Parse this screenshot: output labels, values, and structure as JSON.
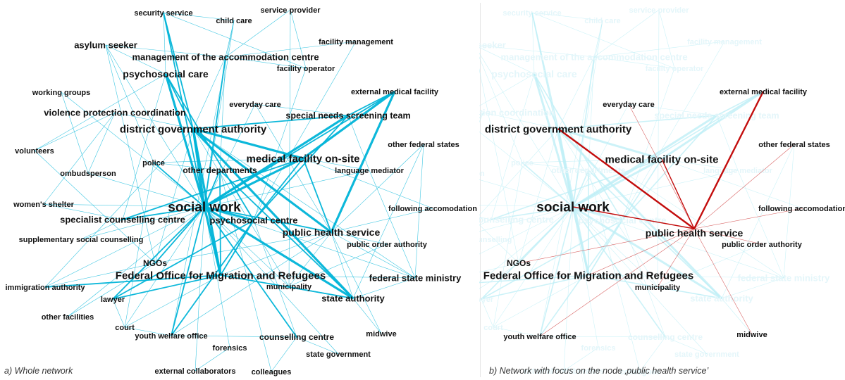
{
  "colors": {
    "edge": "#00b4d8",
    "edge_faded": "#bfeff6",
    "label": "#111111",
    "label_faded": "#e4f6fa",
    "focus_edge": "#c00000"
  },
  "panel_a": {
    "caption": "a) Whole network"
  },
  "panel_b": {
    "caption": "b) Network with focus on the node ‚public health service’",
    "focus_node": "public health service"
  },
  "nodes": [
    {
      "id": "security_service",
      "label": "security service"
    },
    {
      "id": "service_provider",
      "label": "service provider"
    },
    {
      "id": "child_care",
      "label": "child care"
    },
    {
      "id": "asylum_seeker",
      "label": "asylum seeker"
    },
    {
      "id": "facility_management",
      "label": "facility management"
    },
    {
      "id": "management_accommodation",
      "label": "management of the accommodation centre"
    },
    {
      "id": "facility_operator",
      "label": "facility operator"
    },
    {
      "id": "psychosocial_care",
      "label": "psychosocial care"
    },
    {
      "id": "working_groups",
      "label": "working groups"
    },
    {
      "id": "external_medical_facility",
      "label": "external medical facility"
    },
    {
      "id": "everyday_care",
      "label": "everyday care"
    },
    {
      "id": "violence_protection",
      "label": "violence protection coordination"
    },
    {
      "id": "special_needs",
      "label": "special needs screening team"
    },
    {
      "id": "district_government",
      "label": "district government authority"
    },
    {
      "id": "volunteers",
      "label": "volunteers"
    },
    {
      "id": "other_federal_states",
      "label": "other federal states"
    },
    {
      "id": "medical_facility_onsite",
      "label": "medical facility on-site"
    },
    {
      "id": "police",
      "label": "police"
    },
    {
      "id": "ombudsperson",
      "label": "ombudsperson"
    },
    {
      "id": "other_departments",
      "label": "other departments"
    },
    {
      "id": "language_mediator",
      "label": "language mediator"
    },
    {
      "id": "womens_shelter",
      "label": "women's shelter"
    },
    {
      "id": "social_work",
      "label": "social work"
    },
    {
      "id": "following_accommodation",
      "label": "following accomodation"
    },
    {
      "id": "specialist_counselling",
      "label": "specialist counselling centre"
    },
    {
      "id": "psychosocial_centre",
      "label": "psychosocial centre"
    },
    {
      "id": "public_health_service",
      "label": "public health service"
    },
    {
      "id": "supplementary_counselling",
      "label": "supplementary social counselling"
    },
    {
      "id": "public_order_authority",
      "label": "public order authority"
    },
    {
      "id": "ngos",
      "label": "NGOs"
    },
    {
      "id": "bamf",
      "label": "Federal Office for Migration and Refugees"
    },
    {
      "id": "federal_state_ministry",
      "label": "federal state ministry"
    },
    {
      "id": "immigration_authority",
      "label": "immigration authority"
    },
    {
      "id": "municipality",
      "label": "municipality"
    },
    {
      "id": "lawyer",
      "label": "lawyer"
    },
    {
      "id": "state_authority",
      "label": "state authority"
    },
    {
      "id": "other_facilities",
      "label": "other facilities"
    },
    {
      "id": "court",
      "label": "court"
    },
    {
      "id": "youth_welfare_office",
      "label": "youth welfare office"
    },
    {
      "id": "midwive",
      "label": "midwive"
    },
    {
      "id": "counselling_centre",
      "label": "counselling centre"
    },
    {
      "id": "forensics",
      "label": "forensics"
    },
    {
      "id": "state_government",
      "label": "state government"
    },
    {
      "id": "external_collaborators",
      "label": "external collaborators"
    },
    {
      "id": "colleagues",
      "label": "colleagues"
    }
  ],
  "edges": [
    [
      "social_work",
      "district_government",
      3
    ],
    [
      "social_work",
      "psychosocial_care",
      3
    ],
    [
      "social_work",
      "medical_facility_onsite",
      3
    ],
    [
      "social_work",
      "psychosocial_centre",
      3
    ],
    [
      "social_work",
      "bamf",
      3
    ],
    [
      "social_work",
      "special_needs",
      3
    ],
    [
      "social_work",
      "external_medical_facility",
      2
    ],
    [
      "social_work",
      "public_health_service",
      2
    ],
    [
      "social_work",
      "specialist_counselling",
      2
    ],
    [
      "social_work",
      "state_authority",
      3
    ],
    [
      "social_work",
      "youth_welfare_office",
      2
    ],
    [
      "social_work",
      "counselling_centre",
      2
    ],
    [
      "social_work",
      "other_departments",
      2
    ],
    [
      "social_work",
      "police",
      2
    ],
    [
      "social_work",
      "management_accommodation",
      2
    ],
    [
      "social_work",
      "security_service",
      2
    ],
    [
      "social_work",
      "lawyer",
      2
    ],
    [
      "social_work",
      "immigration_authority",
      1
    ],
    [
      "social_work",
      "ngos",
      2
    ],
    [
      "social_work",
      "municipality",
      1
    ],
    [
      "social_work",
      "court",
      1
    ],
    [
      "social_work",
      "asylum_seeker",
      1
    ],
    [
      "social_work",
      "everyday_care",
      1
    ],
    [
      "social_work",
      "language_mediator",
      1
    ],
    [
      "social_work",
      "federal_state_ministry",
      1
    ],
    [
      "social_work",
      "forensics",
      1
    ],
    [
      "social_work",
      "child_care",
      1
    ],
    [
      "social_work",
      "working_groups",
      1
    ],
    [
      "social_work",
      "womens_shelter",
      1
    ],
    [
      "social_work",
      "supplementary_counselling",
      1
    ],
    [
      "district_government",
      "medical_facility_onsite",
      3
    ],
    [
      "district_government",
      "public_health_service",
      3
    ],
    [
      "district_government",
      "bamf",
      3
    ],
    [
      "district_government",
      "state_authority",
      3
    ],
    [
      "district_government",
      "psychosocial_care",
      2
    ],
    [
      "district_government",
      "security_service",
      2
    ],
    [
      "district_government",
      "violence_protection",
      1
    ],
    [
      "district_government",
      "management_accommodation",
      1
    ],
    [
      "district_government",
      "ngos",
      1
    ],
    [
      "district_government",
      "federal_state_ministry",
      1
    ],
    [
      "medical_facility_onsite",
      "external_medical_facility",
      3
    ],
    [
      "medical_facility_onsite",
      "psychosocial_centre",
      2
    ],
    [
      "medical_facility_onsite",
      "specialist_counselling",
      2
    ],
    [
      "medical_facility_onsite",
      "police",
      1
    ],
    [
      "medical_facility_onsite",
      "language_mediator",
      1
    ],
    [
      "medical_facility_onsite",
      "public_health_service",
      2
    ],
    [
      "public_health_service",
      "external_medical_facility",
      3
    ],
    [
      "public_health_service",
      "everyday_care",
      1
    ],
    [
      "public_health_service",
      "other_federal_states",
      1
    ],
    [
      "public_health_service",
      "following_accommodation",
      1
    ],
    [
      "public_health_service",
      "public_order_authority",
      1
    ],
    [
      "public_health_service",
      "midwive",
      1
    ],
    [
      "public_health_service",
      "municipality",
      1
    ],
    [
      "public_health_service",
      "bamf",
      1
    ],
    [
      "public_health_service",
      "ngos",
      1
    ],
    [
      "public_health_service",
      "youth_welfare_office",
      1
    ],
    [
      "public_health_service",
      "state_authority",
      1
    ],
    [
      "public_health_service",
      "federal_state_ministry",
      1
    ],
    [
      "psychosocial_centre",
      "special_needs",
      2
    ],
    [
      "psychosocial_centre",
      "youth_welfare_office",
      2
    ],
    [
      "psychosocial_centre",
      "lawyer",
      2
    ],
    [
      "psychosocial_centre",
      "bamf",
      2
    ],
    [
      "psychosocial_centre",
      "psychosocial_care",
      2
    ],
    [
      "psychosocial_centre",
      "counselling_centre",
      1
    ],
    [
      "bamf",
      "immigration_authority",
      2
    ],
    [
      "bamf",
      "lawyer",
      2
    ],
    [
      "bamf",
      "state_authority",
      2
    ],
    [
      "bamf",
      "federal_state_ministry",
      1
    ],
    [
      "bamf",
      "other_departments",
      2
    ],
    [
      "bamf",
      "court",
      1
    ],
    [
      "special_needs",
      "external_medical_facility",
      2
    ],
    [
      "special_needs",
      "district_government",
      2
    ],
    [
      "specialist_counselling",
      "womens_shelter",
      1
    ],
    [
      "specialist_counselling",
      "psychosocial_care",
      1
    ],
    [
      "specialist_counselling",
      "supplementary_counselling",
      1
    ],
    [
      "state_authority",
      "federal_state_ministry",
      1
    ],
    [
      "state_authority",
      "other_departments",
      2
    ],
    [
      "state_authority",
      "municipality",
      1
    ],
    [
      "federal_state_ministry",
      "other_federal_states",
      1
    ],
    [
      "federal_state_ministry",
      "language_mediator",
      1
    ],
    [
      "asylum_seeker",
      "management_accommodation",
      1
    ],
    [
      "asylum_seeker",
      "psychosocial_care",
      1
    ],
    [
      "asylum_seeker",
      "police",
      1
    ],
    [
      "asylum_seeker",
      "ngos",
      1
    ],
    [
      "management_accommodation",
      "facility_operator",
      1
    ],
    [
      "management_accommodation",
      "facility_management",
      1
    ],
    [
      "management_accommodation",
      "other_departments",
      1
    ],
    [
      "management_accommodation",
      "child_care",
      1
    ],
    [
      "management_accommodation",
      "service_provider",
      1
    ],
    [
      "security_service",
      "child_care",
      1
    ],
    [
      "security_service",
      "facility_operator",
      1
    ],
    [
      "security_service",
      "psychosocial_care",
      1
    ],
    [
      "service_provider",
      "facility_operator",
      1
    ],
    [
      "service_provider",
      "municipality",
      1
    ],
    [
      "violence_protection",
      "volunteers",
      1
    ],
    [
      "violence_protection",
      "womens_shelter",
      1
    ],
    [
      "violence_protection",
      "ombudsperson",
      1
    ],
    [
      "police",
      "court",
      1
    ],
    [
      "police",
      "other_departments",
      1
    ],
    [
      "ngos",
      "immigration_authority",
      1
    ],
    [
      "ngos",
      "other_facilities",
      1
    ],
    [
      "ngos",
      "volunteers",
      1
    ],
    [
      "lawyer",
      "court",
      1
    ],
    [
      "youth_welfare_office",
      "court",
      1
    ],
    [
      "youth_welfare_office",
      "counselling_centre",
      1
    ],
    [
      "counselling_centre",
      "state_government",
      1
    ],
    [
      "counselling_centre",
      "colleagues",
      1
    ],
    [
      "forensics",
      "external_collaborators",
      1
    ],
    [
      "colleagues",
      "other_departments",
      1
    ],
    [
      "midwive",
      "state_authority",
      1
    ],
    [
      "working_groups",
      "ombudsperson",
      1
    ],
    [
      "language_mediator",
      "special_needs",
      1
    ],
    [
      "everyday_care",
      "special_needs",
      1
    ],
    [
      "following_accommodation",
      "medical_facility_onsite",
      1
    ],
    [
      "other_federal_states",
      "state_authority",
      1
    ],
    [
      "external_collaborators",
      "social_work",
      1
    ],
    [
      "state_government",
      "social_work",
      1
    ],
    [
      "facility_operator",
      "psychosocial_centre",
      1
    ],
    [
      "facility_management",
      "bamf",
      1
    ],
    [
      "child_care",
      "youth_welfare_office",
      1
    ],
    [
      "public_order_authority",
      "municipality",
      1
    ],
    [
      "municipality",
      "district_government",
      1
    ],
    [
      "immigration_authority",
      "district_government",
      1
    ],
    [
      "other_facilities",
      "social_work",
      1
    ],
    [
      "volunteers",
      "psychosocial_care",
      1
    ],
    [
      "ombudsperson",
      "social_work",
      1
    ]
  ]
}
